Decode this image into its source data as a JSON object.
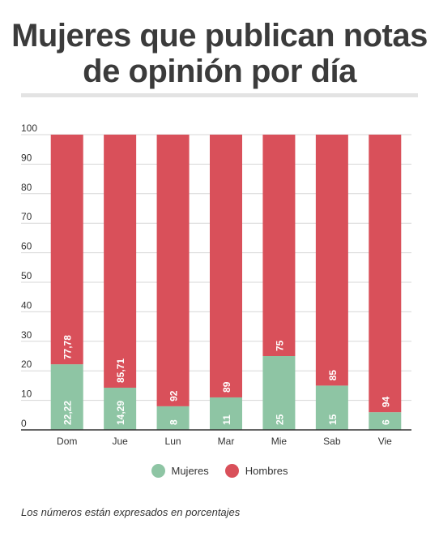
{
  "title": "Mujeres que publican notas de opinión por día",
  "note": "Los números están expresados en porcentajes",
  "colors": {
    "mujeres": "#8ec5a4",
    "hombres": "#d9505a",
    "title": "#3b3b3b"
  },
  "chart_data": {
    "type": "bar",
    "stacked": true,
    "title": "Mujeres que publican notas de opinión por día",
    "categories": [
      "Dom",
      "Jue",
      "Lun",
      "Mar",
      "Mie",
      "Sab",
      "Vie"
    ],
    "series": [
      {
        "name": "Mujeres",
        "values": [
          22.22,
          14.29,
          8,
          11,
          25,
          15,
          6
        ],
        "labels": [
          "22,22",
          "14,29",
          "8",
          "11",
          "25",
          "15",
          "6"
        ]
      },
      {
        "name": "Hombres",
        "values": [
          77.78,
          85.71,
          92,
          89,
          75,
          85,
          94
        ],
        "labels": [
          "77,78",
          "85,71",
          "92",
          "89",
          "75",
          "85",
          "94"
        ]
      }
    ],
    "yticks": [
      0,
      10,
      20,
      30,
      40,
      50,
      60,
      70,
      80,
      90,
      100
    ],
    "ylim": [
      0,
      100
    ],
    "grid": true,
    "legend_position": "bottom"
  }
}
